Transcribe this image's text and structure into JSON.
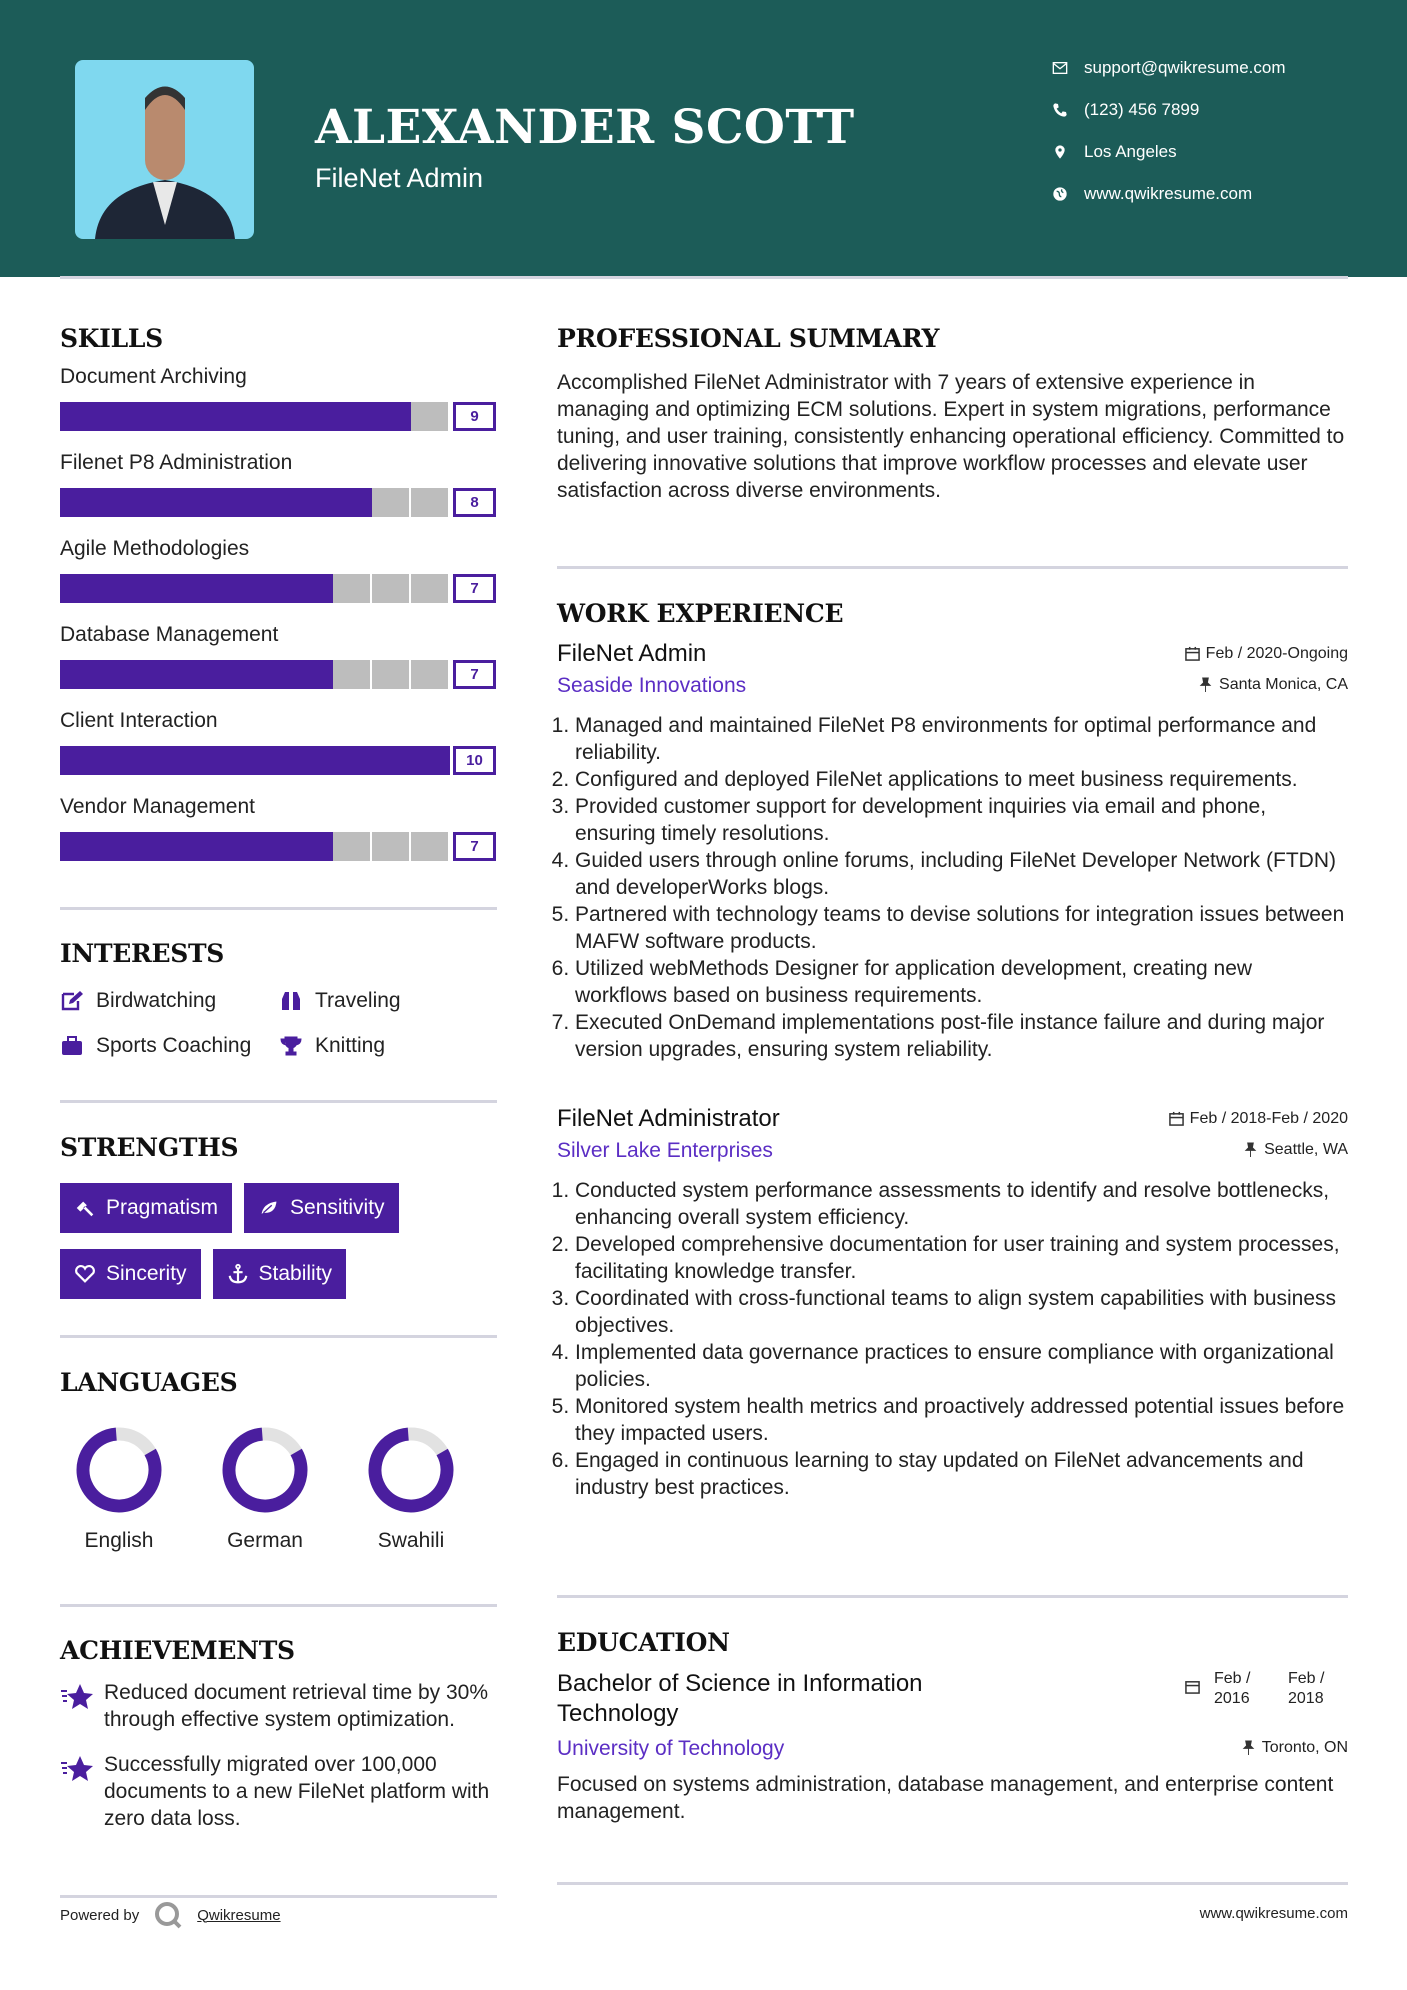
{
  "header": {
    "name": "ALEXANDER SCOTT",
    "title": "FileNet Admin",
    "contact": [
      "support@qwikresume.com",
      "(123) 456 7899",
      "Los Angeles",
      "www.qwikresume.com"
    ]
  },
  "skills": {
    "heading": "SKILLS",
    "items": [
      {
        "name": "Document Archiving",
        "level": 9
      },
      {
        "name": "Filenet P8 Administration",
        "level": 8
      },
      {
        "name": "Agile Methodologies",
        "level": 7
      },
      {
        "name": "Database Management",
        "level": 7
      },
      {
        "name": "Client Interaction",
        "level": 10
      },
      {
        "name": "Vendor Management",
        "level": 7
      }
    ]
  },
  "interests": {
    "heading": "INTERESTS",
    "items": [
      "Birdwatching",
      "Traveling",
      "Sports Coaching",
      "Knitting"
    ]
  },
  "strengths": {
    "heading": "STRENGTHS",
    "items": [
      "Pragmatism",
      "Sensitivity",
      "Sincerity",
      "Stability"
    ]
  },
  "languages": {
    "heading": "LANGUAGES",
    "items": [
      "English",
      "German",
      "Swahili"
    ]
  },
  "achievements": {
    "heading": "ACHIEVEMENTS",
    "items": [
      "Reduced document retrieval time by 30% through effective system optimization.",
      "Successfully migrated over 100,000 documents to a new FileNet platform with zero data loss."
    ]
  },
  "summary": {
    "heading": "PROFESSIONAL SUMMARY",
    "text": "Accomplished FileNet Administrator with 7 years of extensive experience in managing and optimizing ECM solutions. Expert in system migrations, performance tuning, and user training, consistently enhancing operational efficiency. Committed to delivering innovative solutions that improve workflow processes and elevate user satisfaction across diverse environments."
  },
  "experience": {
    "heading": "WORK EXPERIENCE",
    "jobs": [
      {
        "title": "FileNet Admin",
        "dates": "Feb / 2020-Ongoing",
        "company": "Seaside Innovations",
        "location": "Santa Monica, CA",
        "bullets": [
          "Managed and maintained FileNet P8 environments for optimal performance and reliability.",
          "Configured and deployed FileNet applications to meet business requirements.",
          "Provided customer support for development inquiries via email and phone, ensuring timely resolutions.",
          "Guided users through online forums, including FileNet Developer Network (FTDN) and developerWorks blogs.",
          "Partnered with technology teams to devise solutions for integration issues between MAFW software products.",
          "Utilized webMethods Designer for application development, creating new workflows based on business requirements.",
          "Executed OnDemand implementations post-file instance failure and during major version upgrades, ensuring system reliability."
        ]
      },
      {
        "title": "FileNet Administrator",
        "dates": "Feb / 2018-Feb / 2020",
        "company": "Silver Lake Enterprises",
        "location": "Seattle, WA",
        "bullets": [
          "Conducted system performance assessments to identify and resolve bottlenecks, enhancing overall system efficiency.",
          "Developed comprehensive documentation for user training and system processes, facilitating knowledge transfer.",
          "Coordinated with cross-functional teams to align system capabilities with business objectives.",
          "Implemented data governance practices to ensure compliance with organizational policies.",
          "Monitored system health metrics and proactively addressed potential issues before they impacted users.",
          "Engaged in continuous learning to stay updated on FileNet advancements and industry best practices."
        ]
      }
    ]
  },
  "education": {
    "heading": "EDUCATION",
    "degree": "Bachelor of Science in Information Technology",
    "dates": [
      "Feb / 2016",
      "Feb / 2018"
    ],
    "school": "University of Technology",
    "location": "Toronto, ON",
    "description": "Focused on systems administration, database management, and enterprise content management."
  },
  "footer": {
    "powered_by": "Powered by",
    "brand": "Qwikresume",
    "website": "www.qwikresume.com"
  }
}
